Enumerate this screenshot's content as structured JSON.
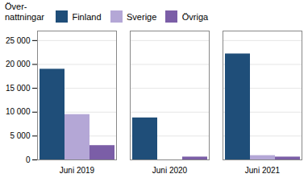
{
  "chart_data": {
    "type": "bar",
    "ylabel": "Över-\nnattningar",
    "categories": [
      "Juni 2019",
      "Juni 2020",
      "Juni 2021"
    ],
    "series": [
      {
        "name": "Finland",
        "color": "#1F4E79",
        "values": [
          19000,
          8800,
          22200
        ]
      },
      {
        "name": "Sverige",
        "color": "#B4A7D6",
        "values": [
          9500,
          0,
          900
        ]
      },
      {
        "name": "Övriga",
        "color": "#7B5EA7",
        "values": [
          3000,
          600,
          600
        ]
      }
    ],
    "ylim": [
      0,
      27000
    ],
    "yticks": [
      0,
      {
        "value": 5000,
        "label": "5 000"
      },
      {
        "value": 10000,
        "label": "10 000"
      },
      {
        "value": 15000,
        "label": "15 000"
      },
      {
        "value": 20000,
        "label": "20 000"
      },
      {
        "value": 25000,
        "label": "25 000"
      }
    ],
    "grid": true,
    "legend": "upper left"
  }
}
